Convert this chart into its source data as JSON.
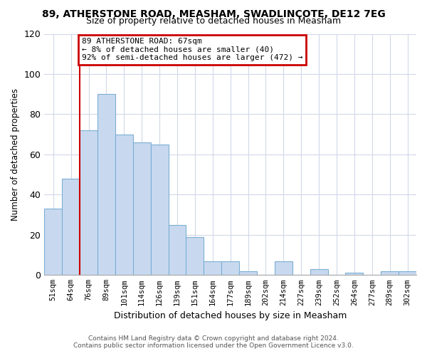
{
  "title": "89, ATHERSTONE ROAD, MEASHAM, SWADLINCOTE, DE12 7EG",
  "subtitle": "Size of property relative to detached houses in Measham",
  "xlabel": "Distribution of detached houses by size in Measham",
  "ylabel": "Number of detached properties",
  "bar_labels": [
    "51sqm",
    "64sqm",
    "76sqm",
    "89sqm",
    "101sqm",
    "114sqm",
    "126sqm",
    "139sqm",
    "151sqm",
    "164sqm",
    "177sqm",
    "189sqm",
    "202sqm",
    "214sqm",
    "227sqm",
    "239sqm",
    "252sqm",
    "264sqm",
    "277sqm",
    "289sqm",
    "302sqm"
  ],
  "bar_values": [
    33,
    48,
    72,
    90,
    70,
    66,
    65,
    25,
    19,
    7,
    7,
    2,
    0,
    7,
    0,
    3,
    0,
    1,
    0,
    2,
    2
  ],
  "bar_color": "#c8d9ef",
  "bar_edge_color": "#7bafd4",
  "ylim": [
    0,
    120
  ],
  "yticks": [
    0,
    20,
    40,
    60,
    80,
    100,
    120
  ],
  "annotation_title": "89 ATHERSTONE ROAD: 67sqm",
  "annotation_line1": "← 8% of detached houses are smaller (40)",
  "annotation_line2": "92% of semi-detached houses are larger (472) →",
  "annotation_box_color": "#ffffff",
  "annotation_box_edge": "#cc0000",
  "red_line_color": "#cc0000",
  "footer1": "Contains HM Land Registry data © Crown copyright and database right 2024.",
  "footer2": "Contains public sector information licensed under the Open Government Licence v3.0.",
  "background_color": "#ffffff",
  "grid_color": "#d0d8e8"
}
